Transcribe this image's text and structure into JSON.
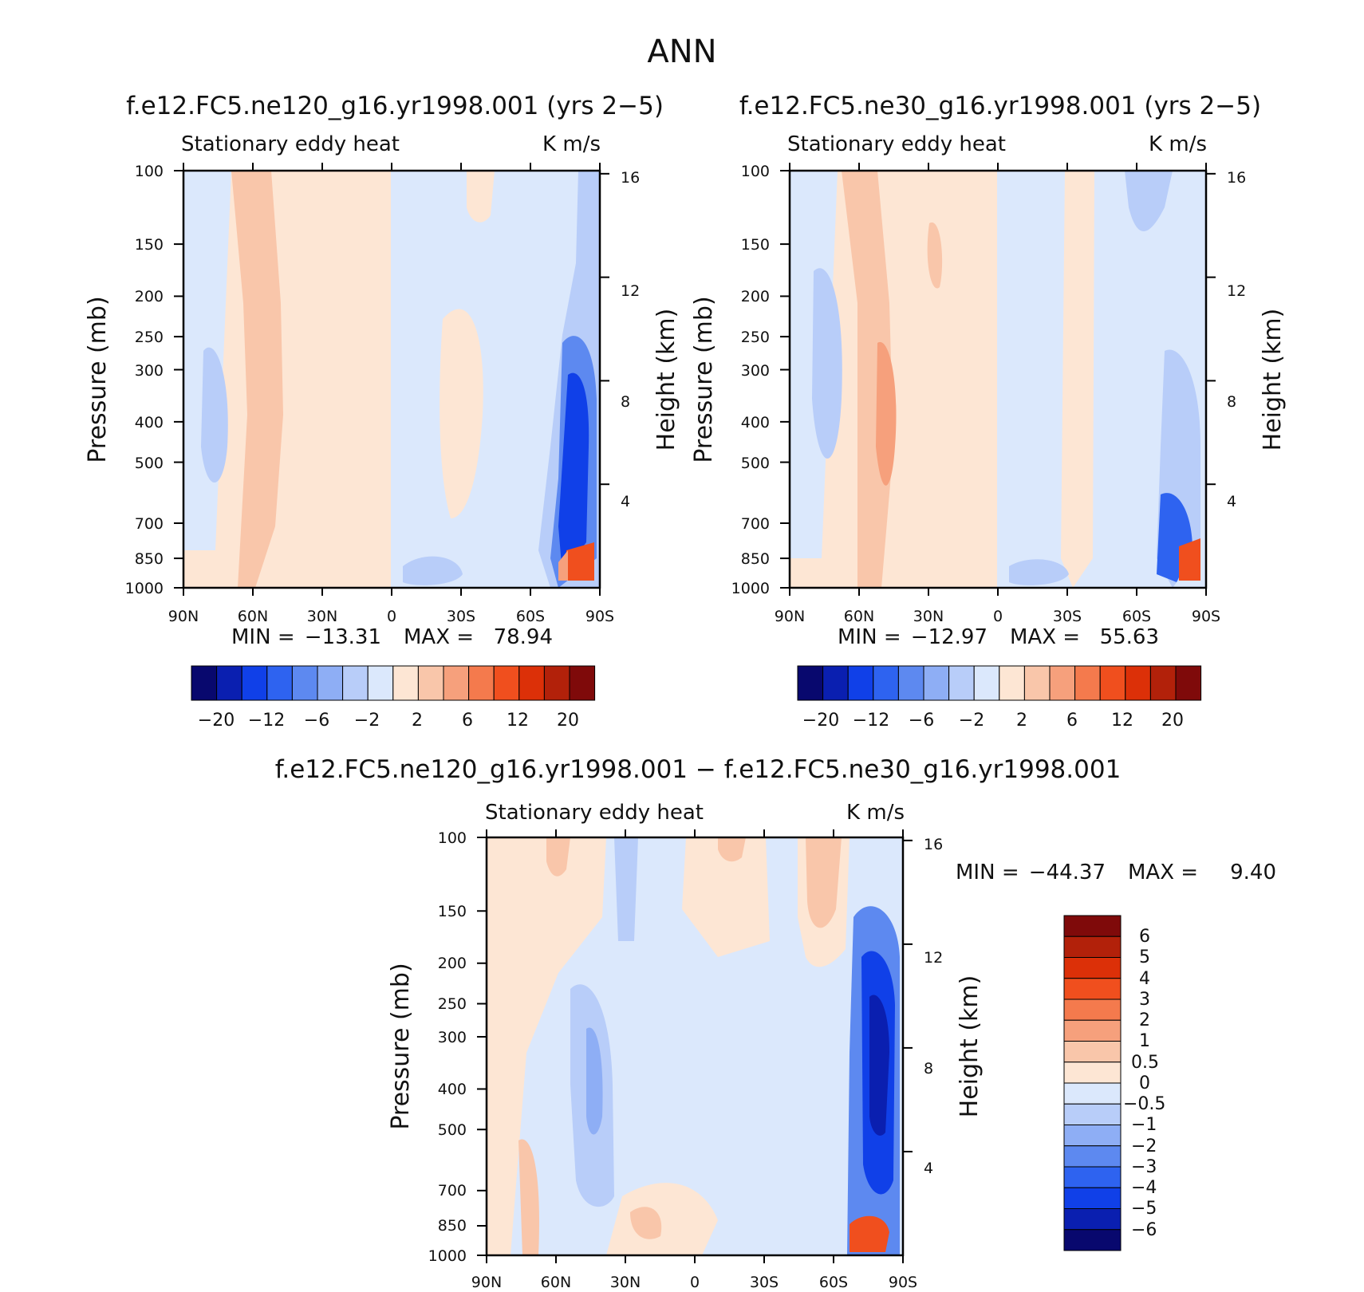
{
  "figure": {
    "title": "ANN"
  },
  "colors": {
    "diverging_palette": [
      "#08086e",
      "#0a1fb0",
      "#1040e8",
      "#2e63f0",
      "#5d89f0",
      "#8eaef5",
      "#b8cdf9",
      "#dbe8fc",
      "#fde6d4",
      "#f9c6aa",
      "#f6a07c",
      "#f47a4d",
      "#f04f1e",
      "#dc3008",
      "#b2210a",
      "#7f0a0a"
    ]
  },
  "chart_data": [
    {
      "id": "panel-ne120",
      "type": "heatmap",
      "title": "f.e12.FC5.ne120_g16.yr1998.001 (yrs 2-5)",
      "variable": "Stationary eddy heat",
      "units": "K m/s",
      "xlabel": "",
      "ylabel": "Pressure (mb)",
      "ylabel_right": "Height (km)",
      "x_ticks": [
        "90N",
        "60N",
        "30N",
        "0",
        "30S",
        "60S",
        "90S"
      ],
      "y_ticks": [
        100,
        150,
        200,
        250,
        300,
        400,
        500,
        700,
        850,
        1000
      ],
      "y_right_ticks": [
        16,
        12,
        8,
        4
      ],
      "ylim": [
        1000,
        100
      ],
      "stats": {
        "min_label": "MIN =",
        "min": "-13.31",
        "max_label": "MAX =",
        "max": "78.94"
      },
      "levels": [
        -20,
        -16,
        -12,
        -8,
        -6,
        -4,
        -2,
        0,
        2,
        4,
        6,
        8,
        12,
        16,
        20
      ],
      "colorbar_labels": [
        "-20",
        "-12",
        "-6",
        "-2",
        "2",
        "6",
        "12",
        "20"
      ]
    },
    {
      "id": "panel-ne30",
      "type": "heatmap",
      "title": "f.e12.FC5.ne30_g16.yr1998.001 (yrs 2-5)",
      "variable": "Stationary eddy heat",
      "units": "K m/s",
      "xlabel": "",
      "ylabel": "Pressure (mb)",
      "ylabel_right": "Height (km)",
      "x_ticks": [
        "90N",
        "60N",
        "30N",
        "0",
        "30S",
        "60S",
        "90S"
      ],
      "y_ticks": [
        100,
        150,
        200,
        250,
        300,
        400,
        500,
        700,
        850,
        1000
      ],
      "y_right_ticks": [
        16,
        12,
        8,
        4
      ],
      "ylim": [
        1000,
        100
      ],
      "stats": {
        "min_label": "MIN =",
        "min": "-12.97",
        "max_label": "MAX =",
        "max": "55.63"
      },
      "levels": [
        -20,
        -16,
        -12,
        -8,
        -6,
        -4,
        -2,
        0,
        2,
        4,
        6,
        8,
        12,
        16,
        20
      ],
      "colorbar_labels": [
        "-20",
        "-12",
        "-6",
        "-2",
        "2",
        "6",
        "12",
        "20"
      ]
    },
    {
      "id": "panel-diff",
      "type": "heatmap",
      "title": "f.e12.FC5.ne120_g16.yr1998.001 - f.e12.FC5.ne30_g16.yr1998.001",
      "variable": "Stationary eddy heat",
      "units": "K m/s",
      "xlabel": "",
      "ylabel": "Pressure (mb)",
      "ylabel_right": "Height (km)",
      "x_ticks": [
        "90N",
        "60N",
        "30N",
        "0",
        "30S",
        "60S",
        "90S"
      ],
      "y_ticks": [
        100,
        150,
        200,
        250,
        300,
        400,
        500,
        700,
        850,
        1000
      ],
      "y_right_ticks": [
        16,
        12,
        8,
        4
      ],
      "ylim": [
        1000,
        100
      ],
      "stats": {
        "min_label": "MIN =",
        "min": "-44.37",
        "max_label": "MAX =",
        "max": "9.40"
      },
      "levels": [
        6,
        5,
        4,
        3,
        2,
        1,
        0.5,
        0,
        -0.5,
        -1,
        -2,
        -3,
        -4,
        -5,
        -6
      ],
      "colorbar_labels": [
        "6",
        "5",
        "4",
        "3",
        "2",
        "1",
        "0.5",
        "0",
        "-0.5",
        "-1",
        "-2",
        "-3",
        "-4",
        "-5",
        "-6"
      ]
    }
  ]
}
